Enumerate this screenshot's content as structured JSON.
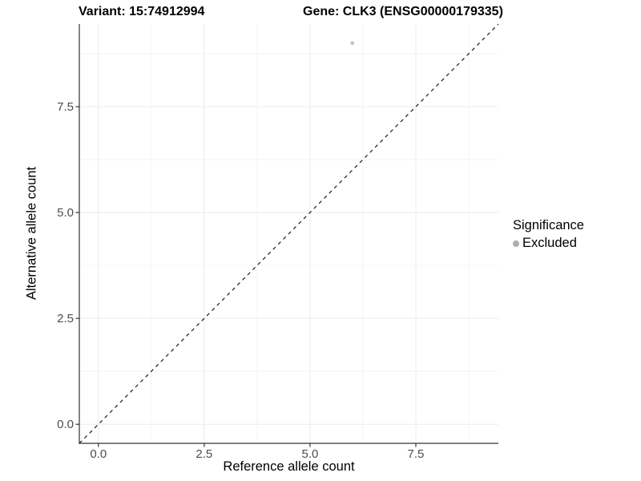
{
  "titles": {
    "left": "Variant: 15:74912994",
    "right": "Gene: CLK3 (ENSG00000179335)"
  },
  "chart_data": {
    "type": "scatter",
    "xlabel": "Reference allele count",
    "ylabel": "Alternative allele count",
    "xlim": [
      -0.45,
      9.45
    ],
    "ylim": [
      -0.45,
      9.45
    ],
    "x_ticks": [
      0,
      2.5,
      5,
      7.5
    ],
    "x_tick_labels": [
      "0.0",
      "2.5",
      "5.0",
      "7.5"
    ],
    "y_ticks": [
      0,
      2.5,
      5,
      7.5
    ],
    "y_tick_labels": [
      "0.0",
      "2.5",
      "5.0",
      "7.5"
    ],
    "x_minor_ticks": [
      1.25,
      3.75,
      6.25,
      8.75
    ],
    "y_minor_ticks": [
      1.25,
      3.75,
      6.25,
      8.75
    ],
    "grid": true,
    "points": [
      {
        "x": 6,
        "y": 9,
        "series": "Excluded"
      }
    ],
    "reference_line": {
      "type": "identity",
      "style": "dashed",
      "color": "#1a1a1a"
    },
    "legend": {
      "title": "Significance",
      "position": "right",
      "items": [
        {
          "label": "Excluded",
          "color": "#adadad"
        }
      ]
    },
    "colors": {
      "point": "#c6c6c6",
      "grid_major": "#ececec",
      "grid_minor": "#f4f4f4",
      "axis_line": "#333333",
      "tick_mark": "#333333",
      "tick_label": "#4d4d4d",
      "background": "#ffffff"
    }
  }
}
